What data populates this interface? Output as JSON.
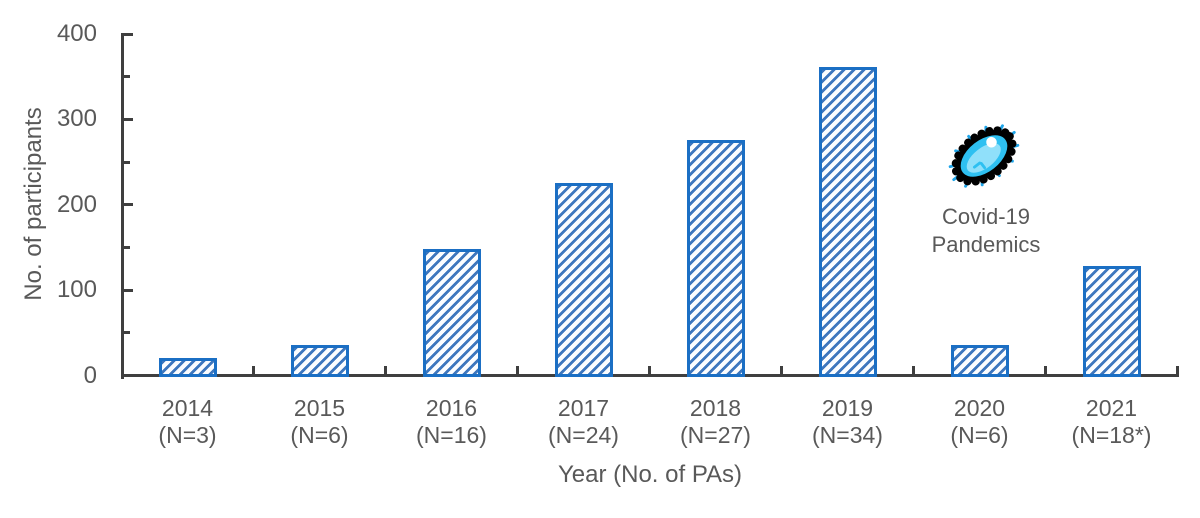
{
  "chart_data": {
    "type": "bar",
    "title": "",
    "categories": [
      "2014",
      "2015",
      "2016",
      "2017",
      "2018",
      "2019",
      "2020",
      "2021"
    ],
    "n_labels": [
      "(N=3)",
      "(N=6)",
      "(N=16)",
      "(N=24)",
      "(N=27)",
      "(N=34)",
      "(N=6)",
      "(N=18*)"
    ],
    "values": [
      20,
      36,
      148,
      226,
      276,
      361,
      36,
      128
    ],
    "xlabel": "Year (No. of PAs)",
    "ylabel": "No. of participants",
    "ylim": [
      0,
      400
    ],
    "y_major_ticks": [
      0,
      100,
      200,
      300,
      400
    ],
    "y_minor_step": 50,
    "grid": false,
    "legend": "none",
    "tick_direction": "inside",
    "bar_style": {
      "border_color": "#1B6FC4",
      "hatch_color": "#3E77BE",
      "hatch_bg": "#FBFDFF",
      "hatch": "diagonal-forward"
    }
  },
  "annotation": {
    "line1": "Covid-19",
    "line2": "Pandemics",
    "icon": "coronavirus-germ",
    "icon_colors": {
      "outline": "#000000",
      "spikes": "#1FA5E9",
      "body": "#2EC0F1",
      "inner": "#90E0FA",
      "highlight": "#FFFFFF"
    }
  },
  "colors": {
    "axis": "#3F3F3F",
    "label": "#595959",
    "background": "#FFFFFF"
  }
}
